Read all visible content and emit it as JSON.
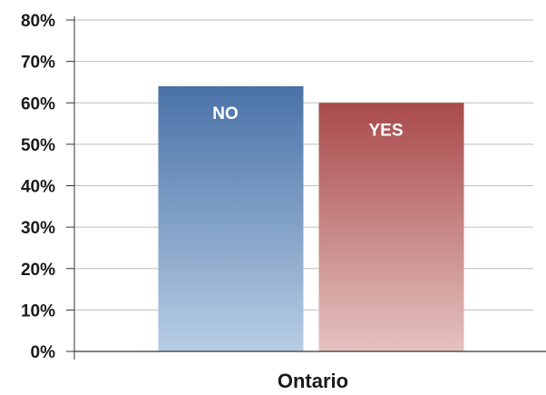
{
  "chart_data": {
    "type": "bar",
    "categories": [
      "Ontario"
    ],
    "series": [
      {
        "name": "NO",
        "values": [
          64
        ],
        "color": "#4a72a8",
        "color_light": "#b7cde4"
      },
      {
        "name": "YES",
        "values": [
          60
        ],
        "color": "#a94a4a",
        "color_light": "#e4c2c0"
      }
    ],
    "ylim": [
      0,
      80
    ],
    "yticks": [
      0,
      10,
      20,
      30,
      40,
      50,
      60,
      70,
      80
    ],
    "ytick_labels": [
      "0%",
      "10%",
      "20%",
      "30%",
      "40%",
      "50%",
      "60%",
      "70%",
      "80%"
    ],
    "grid": true,
    "legend": "none (series names shown inside bars)"
  }
}
